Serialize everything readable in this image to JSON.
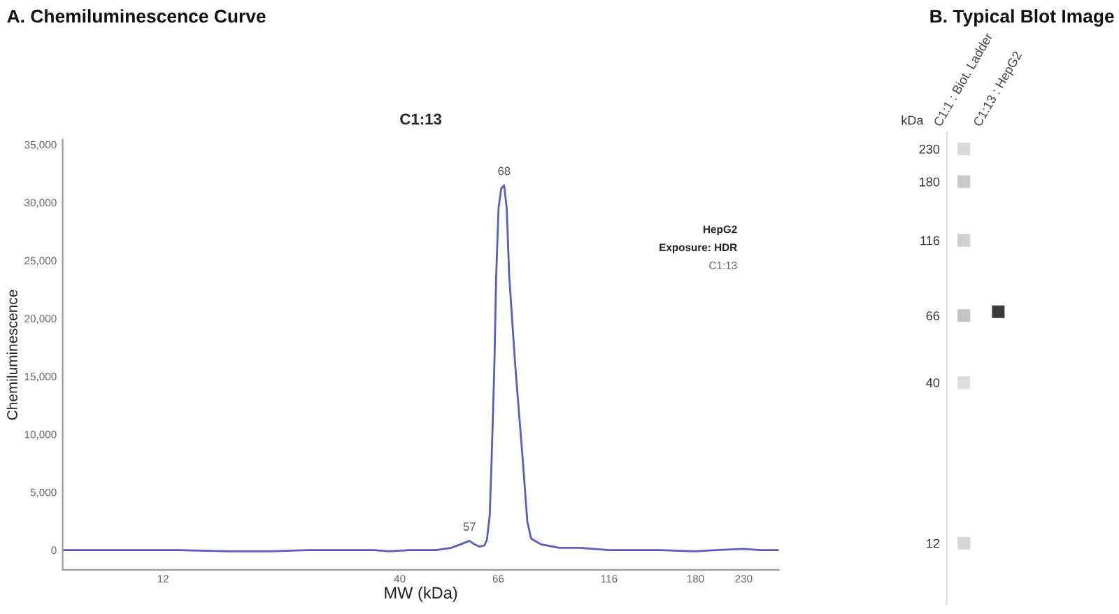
{
  "chart_data": [
    {
      "type": "line",
      "title": "A. Chemiluminescence Curve",
      "subtitle": "C1:13",
      "xlabel": "MW (kDa)",
      "ylabel": "Chemiluminescence",
      "log": "x",
      "x": [
        7.2,
        10,
        13,
        16.8,
        20.8,
        25,
        30,
        35,
        38,
        42,
        48,
        52,
        54.5,
        57,
        58.5,
        60,
        61.5,
        62.3,
        63.2,
        63.8,
        64.7,
        65.3,
        66.1,
        67,
        68,
        68.9,
        69.8,
        72,
        74.8,
        76.5,
        78,
        82,
        90,
        100,
        116,
        130,
        150,
        180,
        200,
        230,
        250,
        275
      ],
      "values": [
        0,
        0,
        0,
        -100,
        -100,
        0,
        0,
        0,
        -100,
        0,
        0,
        200,
        500,
        800,
        500,
        300,
        400,
        900,
        3000,
        7700,
        15800,
        23600,
        29500,
        31200,
        31500,
        29500,
        23600,
        15800,
        7700,
        2500,
        1000,
        500,
        200,
        200,
        0,
        0,
        0,
        -100,
        0,
        100,
        0,
        0
      ],
      "color": "#5c5cbf",
      "xlim": [
        7.2,
        275
      ],
      "xticks": [
        12,
        40,
        66,
        116,
        180,
        230
      ],
      "ylim": [
        -1700,
        35400
      ],
      "yticks": [
        0,
        {
          "value": 5000,
          "label": "5,000"
        },
        {
          "value": 10000,
          "label": "10,000"
        },
        {
          "value": 15000,
          "label": "15,000"
        },
        {
          "value": 20000,
          "label": "20,000"
        },
        {
          "value": 25000,
          "label": "25,000"
        },
        {
          "value": 30000,
          "label": "30,000"
        },
        {
          "value": 35000,
          "label": "35,000"
        }
      ],
      "annotations": [
        {
          "text": "68",
          "x": 68,
          "y": 31500
        },
        {
          "text": "57",
          "x": 57,
          "y": 800
        },
        "HepG2",
        "Exposure: HDR",
        "C1:13"
      ]
    },
    {
      "type": "scatter",
      "title": "B. Typical Blot Image",
      "ylabel": "kDa",
      "categories": [
        "C1:1 : Biot. Ladder",
        "C1:13 : HepG2"
      ],
      "log": "y",
      "ylim": [
        7.6,
        260
      ],
      "yticks": [
        12,
        40,
        66,
        116,
        180,
        230
      ],
      "marker": "square",
      "series": [
        {
          "color": "#d9d9d9",
          "values": [
            230,
            null
          ]
        },
        {
          "color": "#c9c9c9",
          "values": [
            180,
            null
          ]
        },
        {
          "color": "#d0d0d0",
          "values": [
            116,
            null
          ]
        },
        {
          "colors": [
            "#c4c4c4",
            "#3a3a3a"
          ],
          "values": [
            66,
            68
          ]
        },
        {
          "color": "#dedede",
          "values": [
            40,
            null
          ]
        },
        {
          "color": "#d6d6d6",
          "values": [
            12,
            null
          ]
        }
      ]
    }
  ]
}
